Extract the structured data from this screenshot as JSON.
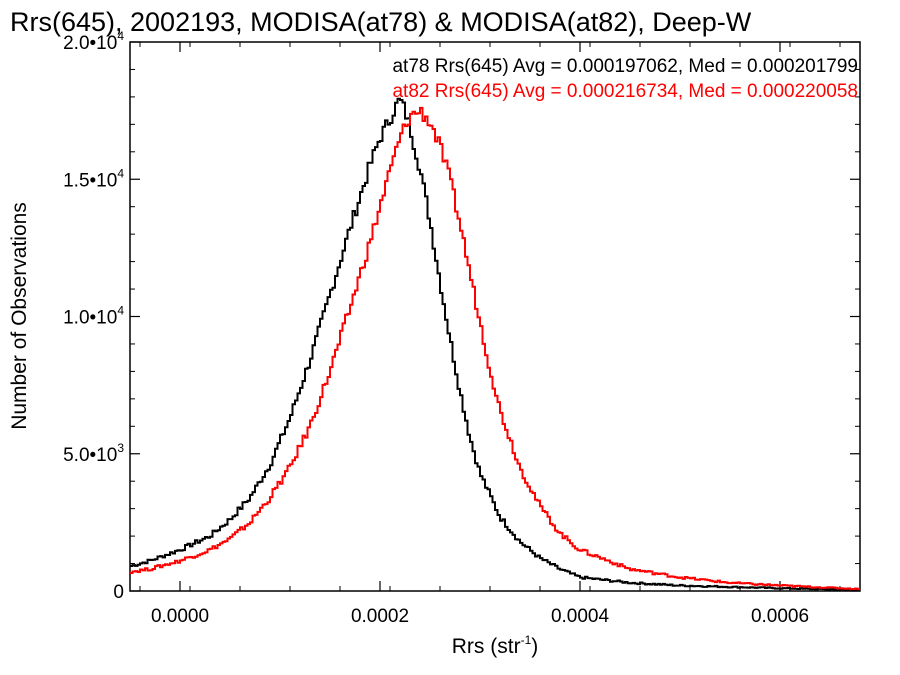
{
  "chart_data": {
    "type": "line",
    "title": "Rrs(645), 2002193, MODISA(at78) & MODISA(at82), Deep-W",
    "xlabel": "Rrs (str",
    "xlabel_sup": "-1",
    "xlabel_close": ")",
    "ylabel": "Number of Observations",
    "xlim": [
      -5e-05,
      0.00068
    ],
    "ylim": [
      0,
      20000
    ],
    "x_ticks": [
      0.0,
      0.0002,
      0.0004,
      0.0006
    ],
    "x_tick_labels": [
      "0.0000",
      "0.0002",
      "0.0004",
      "0.0006"
    ],
    "y_ticks": [
      {
        "value": 0,
        "base": "0",
        "exp": ""
      },
      {
        "value": 5000,
        "base": "5.0•10",
        "exp": "3"
      },
      {
        "value": 10000,
        "base": "1.0•10",
        "exp": "4"
      },
      {
        "value": 15000,
        "base": "1.5•10",
        "exp": "4"
      },
      {
        "value": 20000,
        "base": "2.0•10",
        "exp": "4"
      }
    ],
    "legend": [
      {
        "text": "at78 Rrs(645) Avg = 0.000197062, Med = 0.000201799",
        "color": "#000000"
      },
      {
        "text": "at82 Rrs(645) Avg = 0.000216734, Med = 0.000220058",
        "color": "#ff0000"
      }
    ],
    "legend_position": "top-right",
    "grid": false,
    "series": [
      {
        "color": "#000000",
        "x": [
          -5e-05,
          -3e-05,
          0.0,
          3e-05,
          5e-05,
          7e-05,
          9e-05,
          0.00011,
          0.00013,
          0.00015,
          0.00017,
          0.00019,
          0.0002,
          0.00021,
          0.000215,
          0.00022,
          0.000225,
          0.00023,
          0.00024,
          0.00025,
          0.00026,
          0.00027,
          0.00028,
          0.00029,
          0.0003,
          0.00032,
          0.00034,
          0.00036,
          0.00038,
          0.0004,
          0.00045,
          0.0005,
          0.00055,
          0.0006,
          0.00065,
          0.00068
        ],
        "y": [
          900,
          1100,
          1500,
          2000,
          2600,
          3400,
          4600,
          6300,
          8400,
          10800,
          13200,
          15500,
          16500,
          17200,
          17600,
          17900,
          17500,
          16900,
          15400,
          13500,
          11300,
          9200,
          7300,
          5600,
          4300,
          2700,
          1800,
          1200,
          800,
          500,
          300,
          200,
          150,
          100,
          60,
          40
        ]
      },
      {
        "color": "#ff0000",
        "x": [
          -5e-05,
          -3e-05,
          0.0,
          3e-05,
          5e-05,
          7e-05,
          9e-05,
          0.00011,
          0.00013,
          0.00015,
          0.00017,
          0.00019,
          0.00021,
          0.00022,
          0.00023,
          0.00024,
          0.00025,
          0.00026,
          0.00027,
          0.00028,
          0.00029,
          0.0003,
          0.00031,
          0.00032,
          0.00034,
          0.00036,
          0.00038,
          0.0004,
          0.00045,
          0.0005,
          0.00055,
          0.0006,
          0.00065,
          0.00068
        ],
        "y": [
          700,
          800,
          1100,
          1500,
          1900,
          2500,
          3400,
          4500,
          6000,
          8000,
          10300,
          12700,
          15300,
          16500,
          17300,
          17500,
          17100,
          16200,
          15000,
          13400,
          11600,
          9800,
          8100,
          6600,
          4500,
          3100,
          2100,
          1500,
          800,
          500,
          300,
          200,
          120,
          70
        ]
      }
    ]
  }
}
